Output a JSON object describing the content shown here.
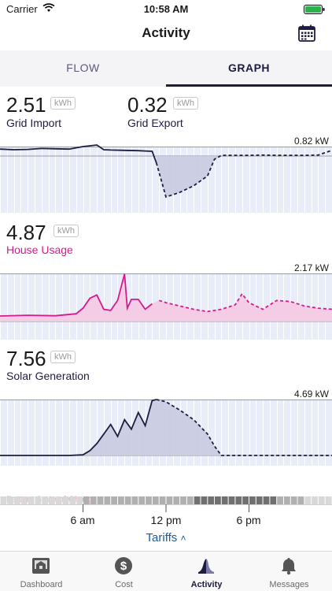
{
  "status": {
    "carrier": "Carrier",
    "time": "10:58 AM"
  },
  "nav": {
    "title": "Activity",
    "calendar_icon": "calendar-icon"
  },
  "tabs": [
    {
      "label": "FLOW",
      "active": false
    },
    {
      "label": "GRAPH",
      "active": true
    }
  ],
  "grid": {
    "import_value": "2.51",
    "import_unit": "kWh",
    "import_label": "Grid Import",
    "export_value": "0.32",
    "export_unit": "kWh",
    "export_label": "Grid Export",
    "max_label": "0.82 kW"
  },
  "house": {
    "value": "4.87",
    "unit": "kWh",
    "label": "House Usage",
    "max_label": "2.17 kW"
  },
  "solar": {
    "value": "7.56",
    "unit": "kWh",
    "label": "Solar Generation",
    "max_label": "4.69 kW"
  },
  "battery_partial_label": "Battery State of Charge",
  "x_axis": {
    "ticks": [
      "6 am",
      "12 pm",
      "6 pm"
    ]
  },
  "tariffs_link": "Tariffs",
  "tabbar": [
    {
      "label": "Dashboard",
      "icon": "dashboard-icon",
      "active": false
    },
    {
      "label": "Cost",
      "icon": "dollar-icon",
      "active": false
    },
    {
      "label": "Activity",
      "icon": "activity-icon",
      "active": true
    },
    {
      "label": "Messages",
      "icon": "bell-icon",
      "active": false
    }
  ],
  "colors": {
    "navy": "#1d1d3f",
    "pink": "#d61a8b",
    "grid_bg": "#e9edf8",
    "navy_fill": "#c9cbe0",
    "pink_fill": "#f5c8e2"
  },
  "chart_data": [
    {
      "type": "line",
      "title": "Grid Import / Grid Export",
      "x_range_hours": [
        0,
        24
      ],
      "max_kw": 0.82,
      "series": [
        {
          "name": "Grid Import",
          "x": [
            0,
            1,
            2,
            3,
            4,
            5,
            6,
            7,
            7.5,
            8,
            9,
            10,
            10.5,
            11,
            11.3
          ],
          "y": [
            0.22,
            0.2,
            0.21,
            0.24,
            0.23,
            0.22,
            0.3,
            0.35,
            0.2,
            0.19,
            0.18,
            0.17,
            0.16,
            0.15,
            -0.1
          ]
        },
        {
          "name": "Grid Export",
          "x": [
            11.3,
            12,
            13,
            14,
            15,
            15.5,
            16,
            17,
            18,
            19,
            20,
            21,
            22,
            23,
            24
          ],
          "y": [
            -0.1,
            -0.62,
            -0.55,
            -0.45,
            -0.3,
            -0.05,
            0.02,
            0.02,
            0.02,
            0.03,
            0.02,
            0.02,
            0.02,
            0.03,
            0.18
          ]
        }
      ]
    },
    {
      "type": "area",
      "title": "House Usage",
      "x_range_hours": [
        0,
        24
      ],
      "max_kw": 2.17,
      "series": [
        {
          "name": "House Usage",
          "x": [
            0,
            2,
            4,
            5.5,
            6,
            6.5,
            7,
            7.5,
            8,
            8.5,
            9,
            9.2,
            9.5,
            10,
            10.5,
            11,
            11.5,
            12,
            13,
            14,
            15,
            16,
            17,
            17.5,
            18,
            19,
            20,
            21,
            22,
            23,
            24
          ],
          "y": [
            0.25,
            0.28,
            0.26,
            0.35,
            0.6,
            1.05,
            1.2,
            0.55,
            0.5,
            0.95,
            2.15,
            0.6,
            1.0,
            1.0,
            0.55,
            0.8,
            0.95,
            0.85,
            0.7,
            0.55,
            0.45,
            0.55,
            0.75,
            1.25,
            0.85,
            0.55,
            0.95,
            0.9,
            0.7,
            0.6,
            0.55
          ]
        }
      ]
    },
    {
      "type": "area",
      "title": "Solar Generation",
      "x_range_hours": [
        0,
        24
      ],
      "max_kw": 4.69,
      "series": [
        {
          "name": "Solar Generation",
          "x": [
            0,
            5,
            6,
            6.5,
            7,
            7.5,
            8,
            8.5,
            9,
            9.5,
            10,
            10.5,
            11,
            11.3,
            12,
            13,
            14,
            15,
            15.5,
            16,
            17,
            18,
            20,
            22,
            24
          ],
          "y": [
            0,
            0,
            0.05,
            0.4,
            1.0,
            1.8,
            2.6,
            1.6,
            3.0,
            2.2,
            3.6,
            2.5,
            4.6,
            4.69,
            4.5,
            3.8,
            3.0,
            1.8,
            0.8,
            0,
            0,
            0,
            0,
            0,
            0
          ]
        }
      ]
    }
  ]
}
